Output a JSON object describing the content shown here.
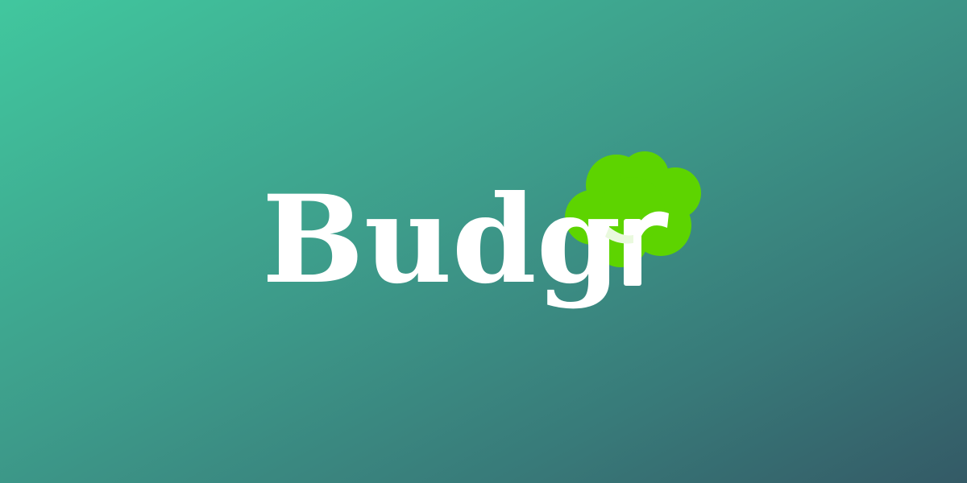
{
  "brand": {
    "name": "Budgr",
    "wordmark_letters": "Budg",
    "final_letter": "r",
    "colors": {
      "background_start": "#41c79e",
      "background_end": "#345a66",
      "wordmark": "#ffffff",
      "tree_canopy": "#5dd400",
      "branch": "#e9f9dd"
    }
  }
}
